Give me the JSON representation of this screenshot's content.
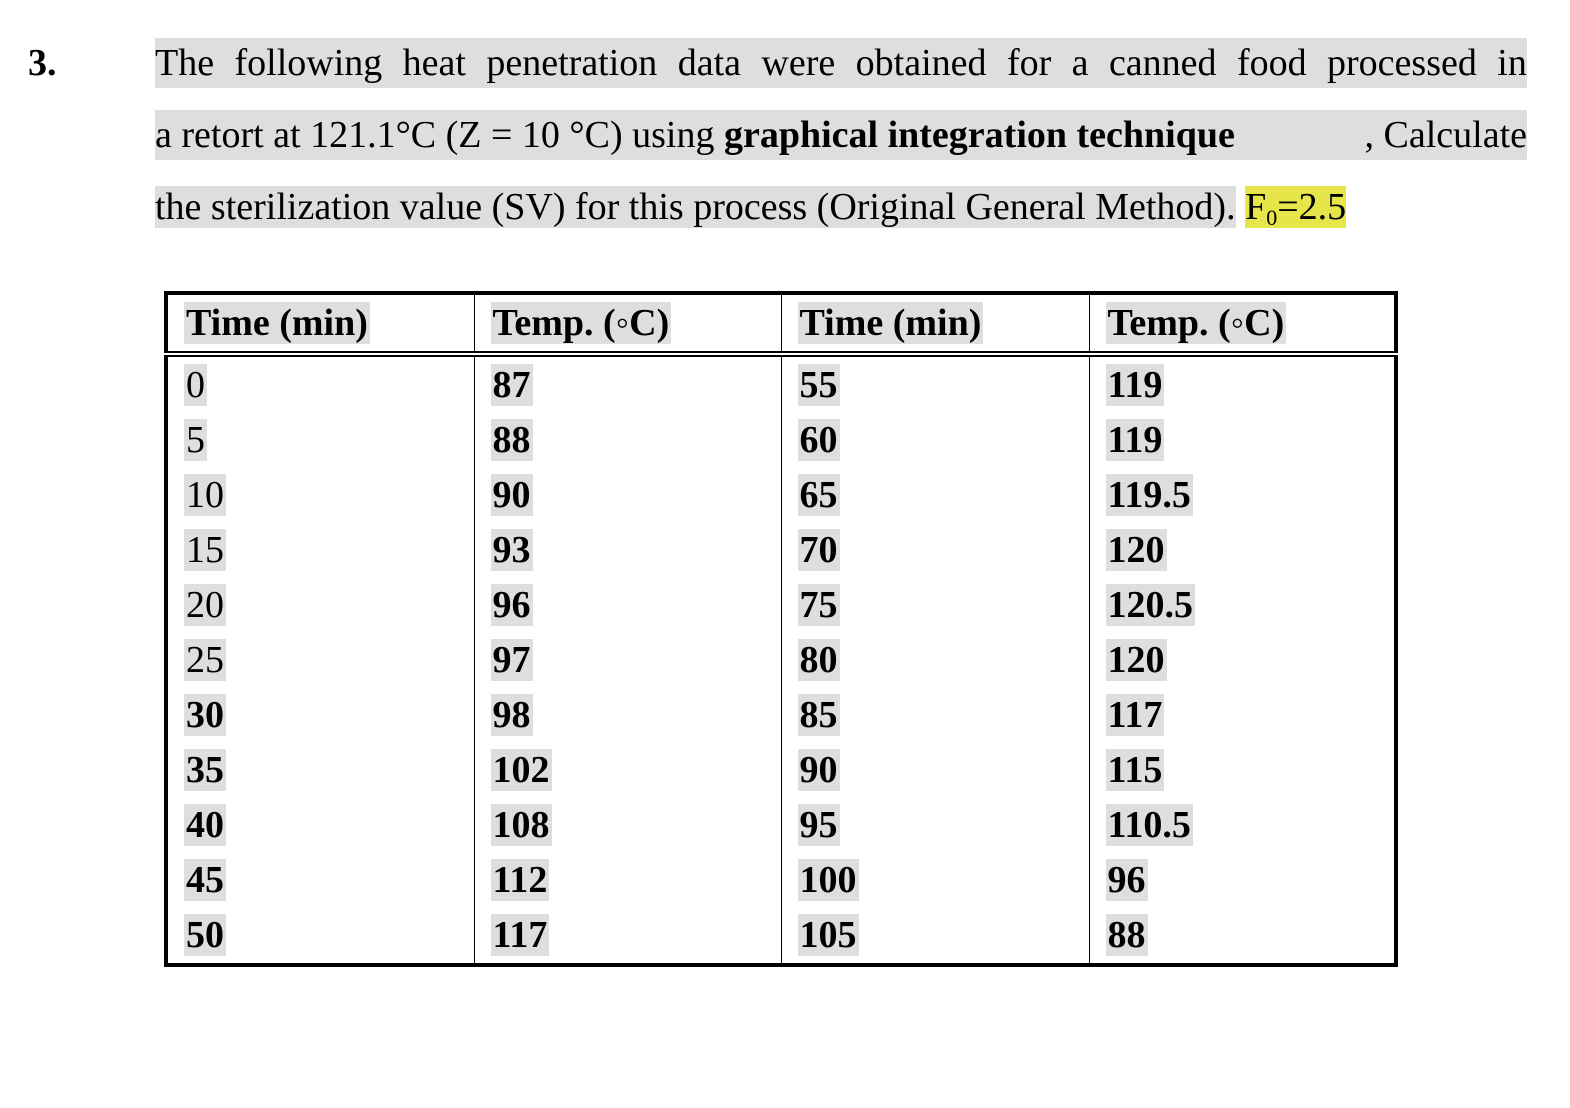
{
  "question": {
    "number": "3.",
    "line1": [
      "The",
      "following",
      "heat",
      "penetration",
      "data",
      "were",
      "obtained",
      "for",
      "a",
      "canned",
      "food",
      "processed",
      "in"
    ],
    "line2": {
      "before": "a retort at 121.1°C (Z = 10 °C) using ",
      "bold": "graphical integration technique",
      "after": ", Calculate"
    },
    "line3": {
      "text": "the sterilization value (SV) for this process (Original General Method).",
      "hl_main": "F",
      "hl_sub": "0",
      "hl_rest": "=2.5"
    }
  },
  "table": {
    "headers": [
      "Time (min)",
      "Temp. (◦C)",
      "Time (min)",
      "Temp. (◦C)"
    ],
    "rows": [
      [
        "0",
        "87",
        "55",
        "119"
      ],
      [
        "5",
        "88",
        "60",
        "119"
      ],
      [
        "10",
        "90",
        "65",
        "119.5"
      ],
      [
        "15",
        "93",
        "70",
        "120"
      ],
      [
        "20",
        "96",
        "75",
        "120.5"
      ],
      [
        "25",
        "97",
        "80",
        "120"
      ],
      [
        "30",
        "98",
        "85",
        "117"
      ],
      [
        "35",
        "102",
        "90",
        "115"
      ],
      [
        "40",
        "108",
        "95",
        "110.5"
      ],
      [
        "45",
        "112",
        "100",
        "96"
      ],
      [
        "50",
        "117",
        "105",
        "88"
      ]
    ]
  },
  "colors": {
    "text_shading": "#dedede",
    "highlight": "#e6e64a"
  }
}
